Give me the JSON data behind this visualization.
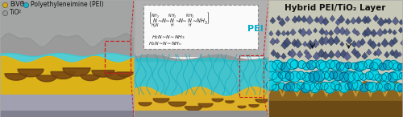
{
  "figsize": [
    5.0,
    1.46
  ],
  "dpi": 100,
  "bg_color": "#ffffff",
  "legend_items": [
    {
      "label": "BiVO₄",
      "color": "#d4a820",
      "marker": "o"
    },
    {
      "label": "Polyethyleneimine (PEI)",
      "color": "#20b0c0",
      "marker": "o"
    },
    {
      "label": "TiO₂",
      "color": "#999999",
      "marker": "o"
    }
  ],
  "right_title": "Hybrid PEI/TiO₂ Layer",
  "middle_label": "PEI",
  "legend_font_size": 6.5,
  "title_font_size": 7.5,
  "pei_label_color": "#00aacc",
  "arrow_color": "#111111",
  "red_box_color": "#cc2222"
}
